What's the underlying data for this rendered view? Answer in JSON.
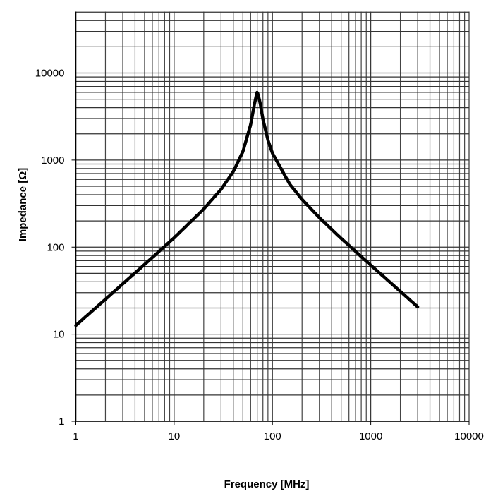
{
  "chart_data": {
    "type": "line",
    "title": "",
    "xlabel": "Frequency [MHz]",
    "ylabel": "Impedance [Ω]",
    "x_scale": "log",
    "y_scale": "log",
    "xlim": [
      1,
      10000
    ],
    "ylim": [
      1,
      50000
    ],
    "grid": true,
    "x_ticks": [
      "1",
      "10",
      "100",
      "1000",
      "10000"
    ],
    "y_ticks": [
      "1",
      "10",
      "100",
      "1000",
      "10000"
    ],
    "series": [
      {
        "color": "#000000",
        "x": [
          1,
          2,
          5,
          10,
          20,
          30,
          40,
          50,
          60,
          65,
          70,
          75,
          80,
          90,
          100,
          150,
          200,
          300,
          500,
          1000,
          2000,
          3000
        ],
        "y": [
          12.6,
          25.2,
          63.2,
          128,
          274,
          460,
          739,
          1249,
          2547,
          4192,
          6140,
          4519,
          2953,
          1690,
          1198,
          528,
          353,
          218,
          126,
          62,
          31,
          20.6
        ]
      }
    ]
  }
}
